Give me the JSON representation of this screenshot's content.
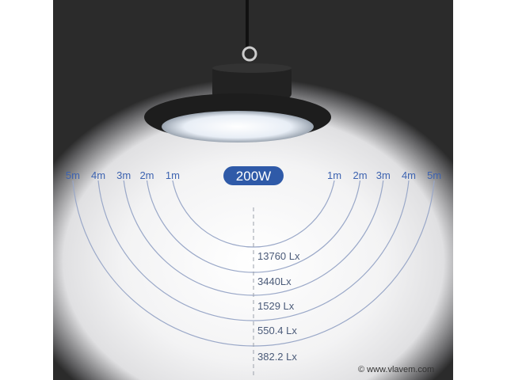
{
  "power_badge": "200W",
  "distances_left": [
    "5m",
    "4m",
    "3m",
    "2m",
    "1m"
  ],
  "distances_right": [
    "1m",
    "2m",
    "3m",
    "4m",
    "5m"
  ],
  "lux_readings": [
    {
      "distance": "1m",
      "label": "13760 Lx"
    },
    {
      "distance": "2m",
      "label": "3440Lx"
    },
    {
      "distance": "3m",
      "label": "1529 Lx"
    },
    {
      "distance": "4m",
      "label": "550.4 Lx"
    },
    {
      "distance": "5m",
      "label": "382.2 Lx"
    }
  ],
  "watermark": "© www.vlavem.com",
  "colors": {
    "badge": "#2f5aa8",
    "distance_text": "#3d63b0",
    "arc": "#9aa8c8",
    "background_dark": "#2b2b2b"
  }
}
